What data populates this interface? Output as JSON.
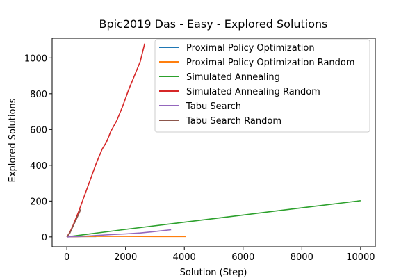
{
  "chart_data": {
    "type": "line",
    "title": "Bpic2019 Das - Easy - Explored Solutions",
    "xlabel": "Solution (Step)",
    "ylabel": "Explored Solutions",
    "xlim": [
      -500,
      10500
    ],
    "ylim": [
      -55,
      1110
    ],
    "xticks": [
      0,
      2000,
      4000,
      6000,
      8000,
      10000
    ],
    "yticks": [
      0,
      200,
      400,
      600,
      800,
      1000
    ],
    "grid": false,
    "legend_position": "top-right",
    "series": [
      {
        "name": "Proximal Policy Optimization",
        "color": "#1f77b4",
        "x": [
          0,
          200,
          500,
          1000
        ],
        "y": [
          0,
          1,
          2,
          2
        ]
      },
      {
        "name": "Proximal Policy Optimization Random",
        "color": "#ff7f0e",
        "x": [
          0,
          500,
          1000,
          2000,
          3000,
          4050
        ],
        "y": [
          0,
          2,
          3,
          3,
          2,
          2
        ]
      },
      {
        "name": "Simulated Annealing",
        "color": "#2ca02c",
        "x": [
          0,
          2000,
          4000,
          6000,
          8000,
          10000
        ],
        "y": [
          0,
          42,
          82,
          122,
          162,
          202
        ]
      },
      {
        "name": "Simulated Annealing Random",
        "color": "#d62728",
        "x": [
          0,
          100,
          200,
          400,
          600,
          800,
          1000,
          1200,
          1350,
          1500,
          1700,
          1900,
          2100,
          2300,
          2500,
          2650
        ],
        "y": [
          0,
          25,
          60,
          140,
          230,
          320,
          410,
          490,
          530,
          590,
          650,
          730,
          820,
          900,
          980,
          1080
        ]
      },
      {
        "name": "Tabu Search",
        "color": "#9467bd",
        "x": [
          0,
          500,
          1000,
          1500,
          2000,
          2500,
          3000,
          3550
        ],
        "y": [
          0,
          3,
          8,
          13,
          17,
          22,
          30,
          40
        ]
      },
      {
        "name": "Tabu Search Random",
        "color": "#8c564b",
        "x": [
          0,
          100,
          200,
          300,
          400,
          480
        ],
        "y": [
          0,
          20,
          55,
          90,
          125,
          155
        ]
      }
    ]
  }
}
